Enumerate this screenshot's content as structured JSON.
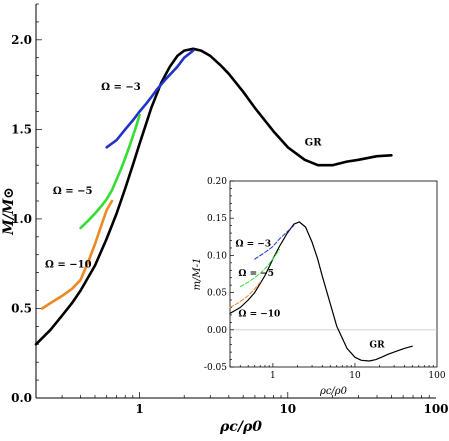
{
  "chart_data": [
    {
      "type": "line",
      "xscale": "log",
      "xlim": [
        0.2,
        100
      ],
      "ylim": [
        0.0,
        2.2
      ],
      "xlabel": "ρc/ρ0",
      "ylabel": "M/M⊙",
      "xticks": [
        {
          "value": 1,
          "label": "1"
        },
        {
          "value": 10,
          "label": "10"
        },
        {
          "value": 100,
          "label": "100"
        }
      ],
      "yticks": [
        {
          "value": 0.0,
          "label": "0.0"
        },
        {
          "value": 0.5,
          "label": "0.5"
        },
        {
          "value": 1.0,
          "label": "1.0"
        },
        {
          "value": 1.5,
          "label": "1.5"
        },
        {
          "value": 2.0,
          "label": "2.0"
        }
      ],
      "series": [
        {
          "name": "GR",
          "color": "#000000",
          "dash": "none",
          "width": 2.6,
          "x": [
            0.2,
            0.25,
            0.3,
            0.35,
            0.4,
            0.5,
            0.6,
            0.7,
            0.8,
            0.9,
            1.0,
            1.2,
            1.4,
            1.6,
            1.8,
            2.0,
            2.3,
            2.6,
            3.0,
            3.5,
            4.0,
            5.0,
            6.0,
            8.0,
            10.0,
            13.0,
            16.0,
            20.0,
            25.0,
            30.0,
            40.0,
            50.0
          ],
          "y": [
            0.3,
            0.38,
            0.46,
            0.53,
            0.6,
            0.74,
            0.89,
            1.03,
            1.17,
            1.3,
            1.42,
            1.62,
            1.76,
            1.85,
            1.91,
            1.94,
            1.95,
            1.94,
            1.91,
            1.86,
            1.81,
            1.71,
            1.62,
            1.49,
            1.4,
            1.33,
            1.3,
            1.3,
            1.32,
            1.33,
            1.35,
            1.355
          ]
        },
        {
          "name": "",
          "color": "#2233cc",
          "dash": "none",
          "width": 2.6,
          "x": [
            0.6,
            0.7,
            0.8,
            0.9,
            1.0,
            1.1,
            1.2,
            1.3,
            1.5,
            1.8,
            2.0,
            2.3
          ],
          "y": [
            1.4,
            1.44,
            1.5,
            1.55,
            1.6,
            1.64,
            1.68,
            1.72,
            1.78,
            1.85,
            1.9,
            1.94
          ]
        },
        {
          "name": "",
          "color": "#33dd33",
          "dash": "none",
          "width": 2.6,
          "x": [
            0.4,
            0.45,
            0.5,
            0.55,
            0.6,
            0.65,
            0.7,
            0.75,
            0.8,
            0.85,
            0.9,
            0.95,
            1.0
          ],
          "y": [
            0.95,
            0.99,
            1.03,
            1.07,
            1.11,
            1.16,
            1.22,
            1.28,
            1.34,
            1.4,
            1.46,
            1.52,
            1.58
          ]
        },
        {
          "name": "",
          "color": "#ee8822",
          "dash": "none",
          "width": 2.6,
          "x": [
            0.22,
            0.25,
            0.3,
            0.35,
            0.4,
            0.45,
            0.5,
            0.55,
            0.6,
            0.65
          ],
          "y": [
            0.5,
            0.53,
            0.57,
            0.61,
            0.66,
            0.76,
            0.86,
            0.96,
            1.05,
            1.1
          ]
        }
      ],
      "annotations": [
        {
          "text": "Ω = −3",
          "x": 0.55,
          "y": 1.72
        },
        {
          "text": "Ω = −5",
          "x": 0.26,
          "y": 1.14
        },
        {
          "text": "Ω = −10",
          "x": 0.23,
          "y": 0.73
        },
        {
          "text": "GR",
          "x": 13.0,
          "y": 1.41
        }
      ]
    },
    {
      "type": "line",
      "xscale": "log",
      "xlim": [
        0.3,
        100
      ],
      "ylim": [
        -0.05,
        0.2
      ],
      "xlabel": "ρc/ρ0",
      "ylabel": "m/M-1",
      "xticks": [
        {
          "value": 1,
          "label": "1"
        },
        {
          "value": 10,
          "label": "10"
        },
        {
          "value": 100,
          "label": "100"
        }
      ],
      "yticks": [
        {
          "value": -0.05,
          "label": "-0.05"
        },
        {
          "value": 0.0,
          "label": "0.00"
        },
        {
          "value": 0.05,
          "label": "0.05"
        },
        {
          "value": 0.1,
          "label": "0.10"
        },
        {
          "value": 0.15,
          "label": "0.15"
        },
        {
          "value": 0.2,
          "label": "0.20"
        }
      ],
      "series": [
        {
          "name": "GR",
          "color": "#000000",
          "dash": "none",
          "width": 1.2,
          "x": [
            0.3,
            0.4,
            0.5,
            0.6,
            0.8,
            1.0,
            1.2,
            1.5,
            1.8,
            2.1,
            2.5,
            3.0,
            3.5,
            4.0,
            5.0,
            6.0,
            8.0,
            10.0,
            12.0,
            15.0,
            18.0,
            22.0,
            25.0,
            30.0,
            40.0,
            50.0
          ],
          "y": [
            0.022,
            0.03,
            0.04,
            0.05,
            0.073,
            0.095,
            0.112,
            0.13,
            0.142,
            0.145,
            0.138,
            0.118,
            0.096,
            0.072,
            0.035,
            0.005,
            -0.025,
            -0.037,
            -0.041,
            -0.042,
            -0.04,
            -0.036,
            -0.033,
            -0.03,
            -0.025,
            -0.022
          ]
        },
        {
          "name": "",
          "color": "#2233cc",
          "dash": "4,2",
          "width": 1.0,
          "x": [
            0.6,
            0.8,
            1.0,
            1.2,
            1.5,
            1.8
          ],
          "y": [
            0.095,
            0.104,
            0.112,
            0.122,
            0.132,
            0.14
          ]
        },
        {
          "name": "",
          "color": "#33dd33",
          "dash": "4,2",
          "width": 1.0,
          "x": [
            0.4,
            0.5,
            0.6,
            0.7,
            0.8,
            1.0,
            1.2
          ],
          "y": [
            0.058,
            0.064,
            0.07,
            0.076,
            0.082,
            0.095,
            0.108
          ]
        },
        {
          "name": "",
          "color": "#ee8822",
          "dash": "4,2",
          "width": 1.0,
          "x": [
            0.3,
            0.35,
            0.4,
            0.5,
            0.6,
            0.7
          ],
          "y": [
            0.03,
            0.034,
            0.038,
            0.046,
            0.055,
            0.064
          ]
        }
      ],
      "annotations": [
        {
          "text": "Ω = −3",
          "x": 0.35,
          "y": 0.112
        },
        {
          "text": "Ω = −5",
          "x": 0.38,
          "y": 0.072
        },
        {
          "text": "Ω = −10",
          "x": 0.38,
          "y": 0.018
        },
        {
          "text": "GR",
          "x": 15.0,
          "y": -0.024
        }
      ]
    }
  ]
}
